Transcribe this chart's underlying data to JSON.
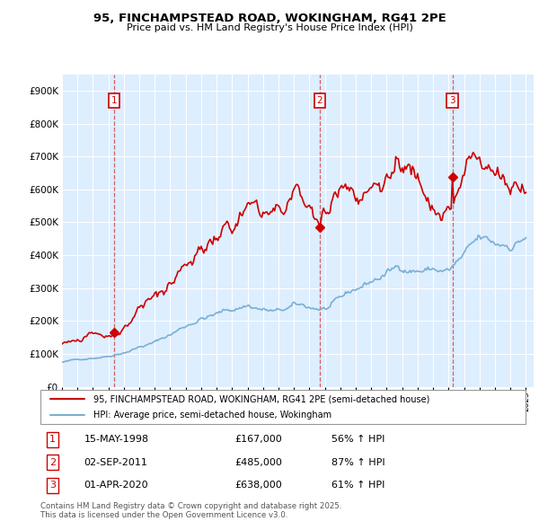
{
  "title": "95, FINCHAMPSTEAD ROAD, WOKINGHAM, RG41 2PE",
  "subtitle": "Price paid vs. HM Land Registry's House Price Index (HPI)",
  "legend_house": "95, FINCHAMPSTEAD ROAD, WOKINGHAM, RG41 2PE (semi-detached house)",
  "legend_hpi": "HPI: Average price, semi-detached house, Wokingham",
  "footer1": "Contains HM Land Registry data © Crown copyright and database right 2025.",
  "footer2": "This data is licensed under the Open Government Licence v3.0.",
  "transactions": [
    {
      "num": 1,
      "date": "15-MAY-1998",
      "price": 167000,
      "pct": "56% ↑ HPI",
      "year": 1998.37
    },
    {
      "num": 2,
      "date": "02-SEP-2011",
      "price": 485000,
      "pct": "87% ↑ HPI",
      "year": 2011.67
    },
    {
      "num": 3,
      "date": "01-APR-2020",
      "price": 638000,
      "pct": "61% ↑ HPI",
      "year": 2020.25
    }
  ],
  "house_color": "#cc0000",
  "hpi_color": "#7aafd4",
  "background_color": "#ddeeff",
  "ylim": [
    0,
    950000
  ],
  "yticks": [
    0,
    100000,
    200000,
    300000,
    400000,
    500000,
    600000,
    700000,
    800000,
    900000
  ],
  "xlim_start": 1995.0,
  "xlim_end": 2025.5
}
